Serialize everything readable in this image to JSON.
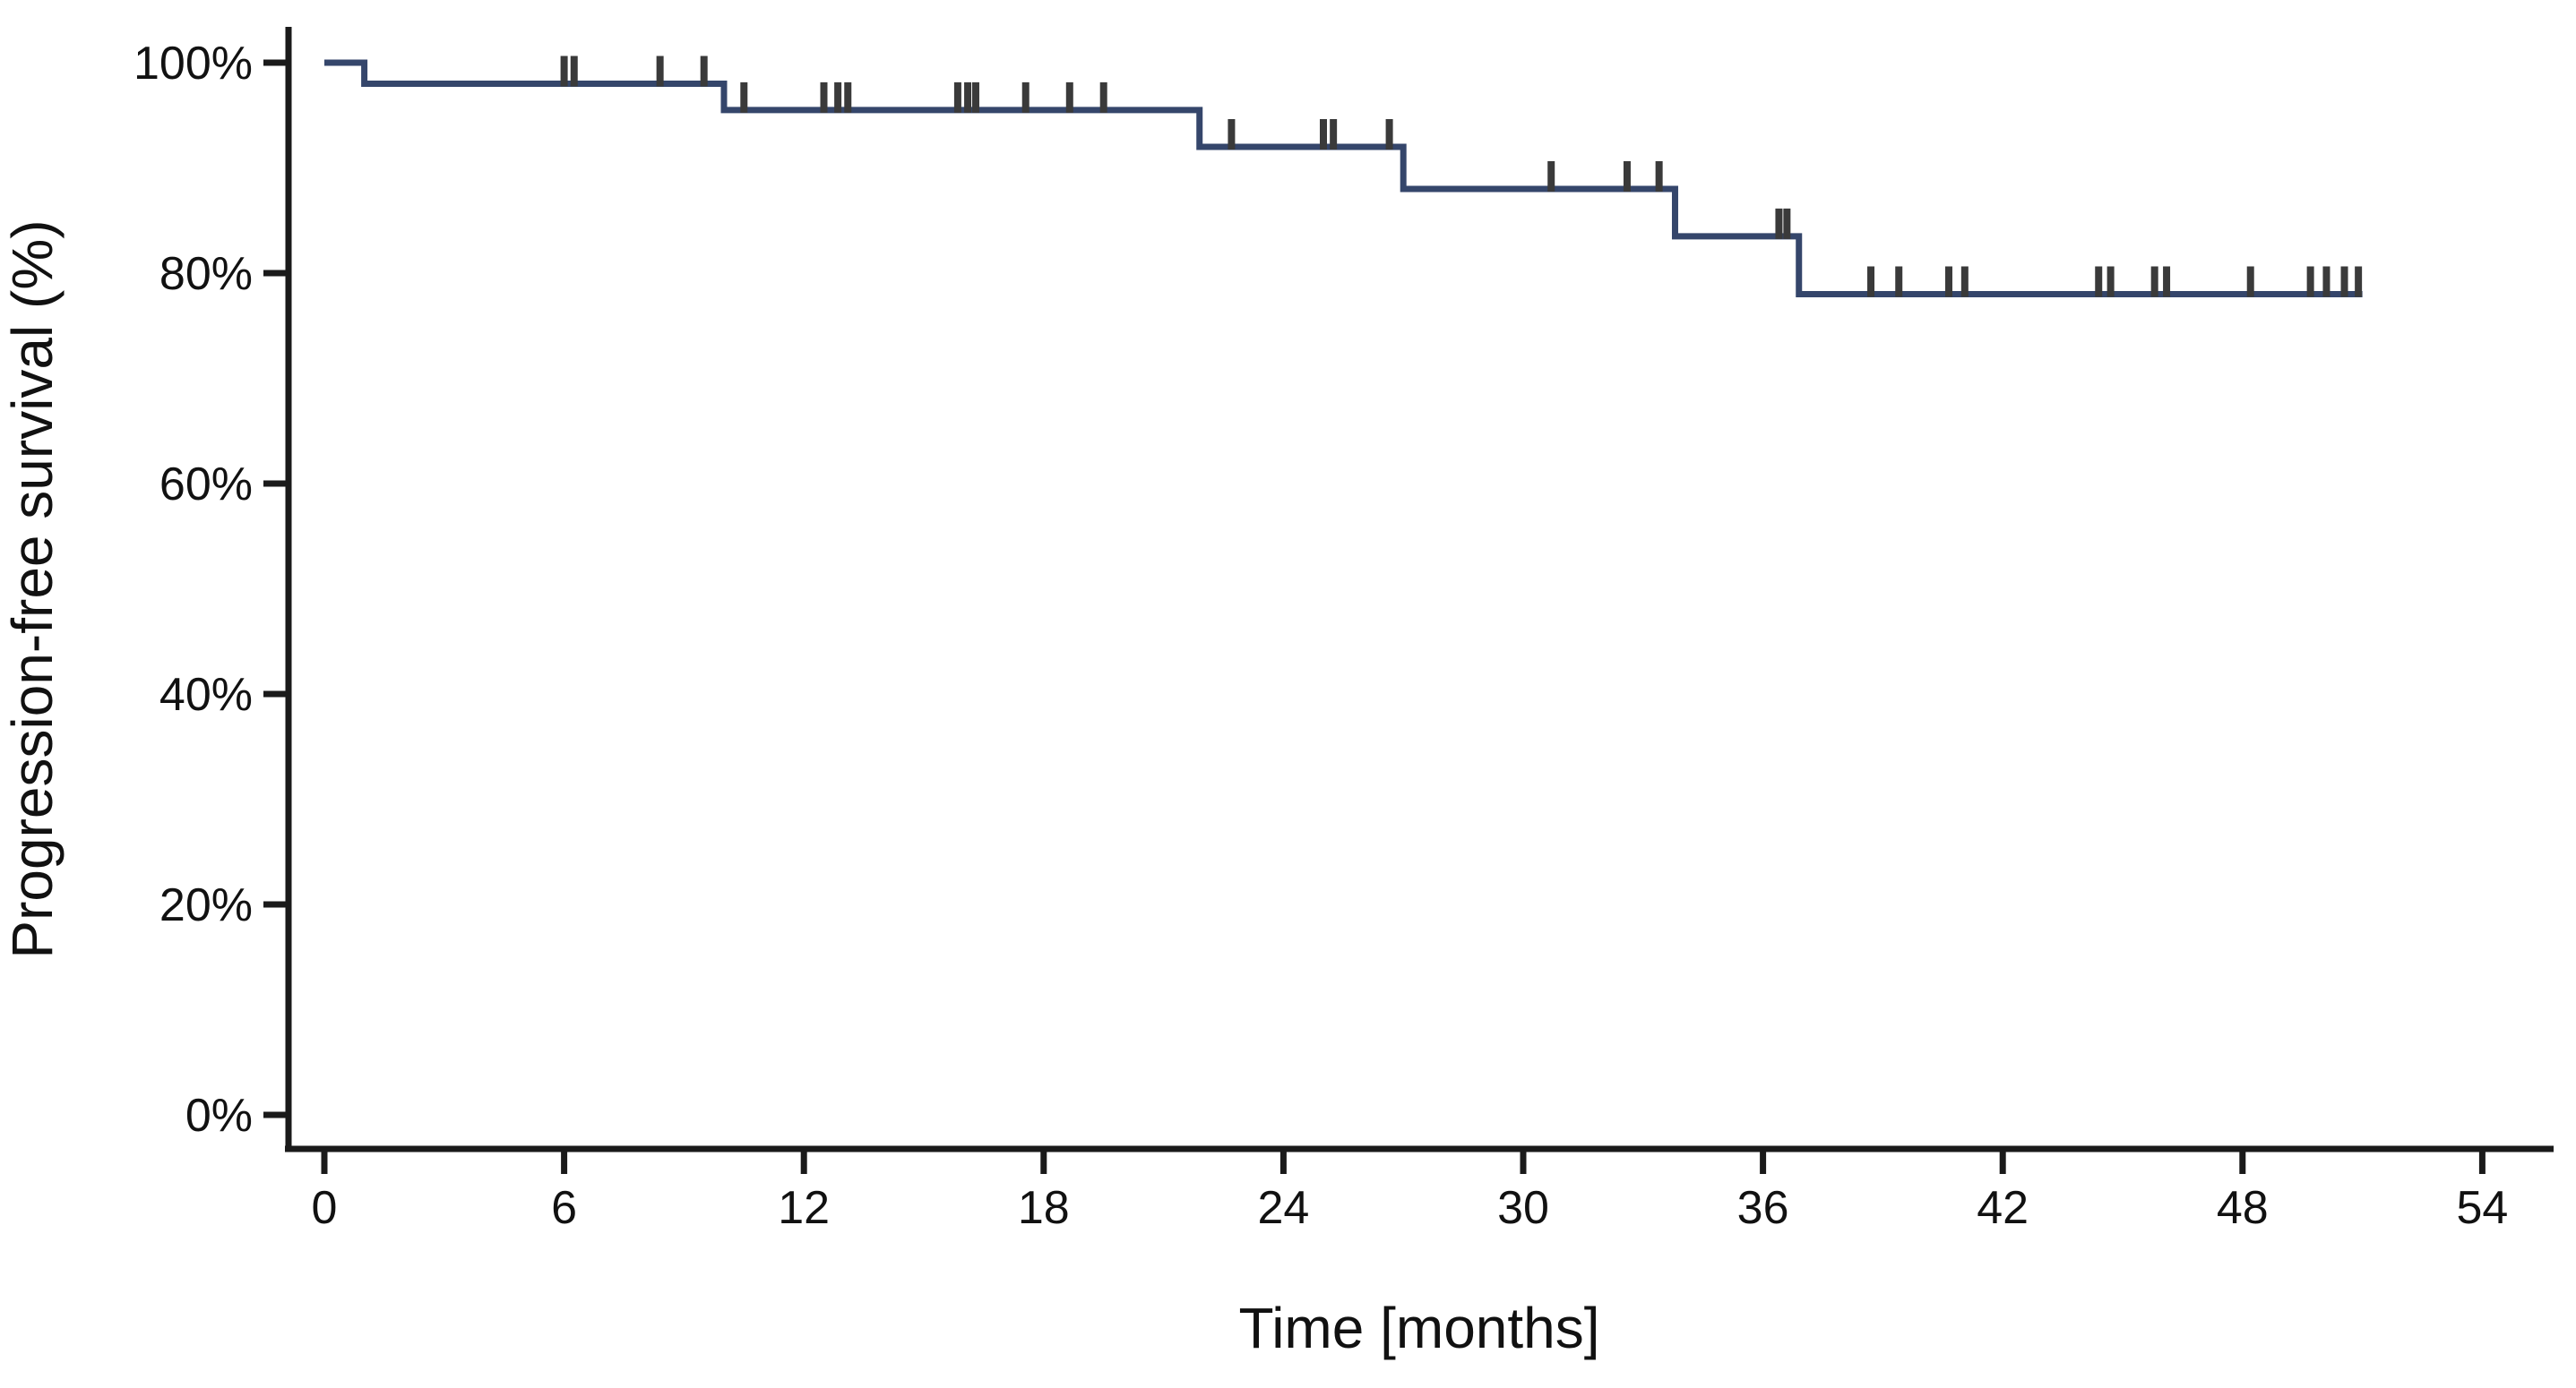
{
  "figure": {
    "kind": "kaplan-meier-step-plot",
    "background_color": "#ffffff"
  },
  "axes": {
    "x_title": "Time [months]",
    "y_title": "Progression-free survival (%)",
    "x_tick_labels": [
      "0",
      "6",
      "12",
      "18",
      "24",
      "30",
      "36",
      "42",
      "48",
      "54"
    ],
    "x_tick_values": [
      0,
      6,
      12,
      18,
      24,
      30,
      36,
      42,
      48,
      54
    ],
    "y_tick_labels": [
      "0%",
      "20%",
      "40%",
      "60%",
      "80%",
      "100%"
    ],
    "y_tick_values": [
      0,
      20,
      40,
      60,
      80,
      100
    ],
    "axis_color": "#1a1a1a"
  },
  "chart_data": {
    "type": "line",
    "subtype": "kaplan-meier-step",
    "title": "",
    "xlabel": "Time [months]",
    "ylabel": "Progression-free survival (%)",
    "xlim": [
      0,
      54
    ],
    "ylim_percent": [
      0,
      100
    ],
    "grid": false,
    "legend": "none",
    "line_color": "#35466b",
    "censor_color": "#3a3a3a",
    "series": [
      {
        "name": "Progression-free survival",
        "steps": [
          {
            "time": 0,
            "survival": 100
          },
          {
            "time": 1.0,
            "survival": 98
          },
          {
            "time": 10.0,
            "survival": 95.5
          },
          {
            "time": 21.9,
            "survival": 92
          },
          {
            "time": 27.0,
            "survival": 88
          },
          {
            "time": 33.8,
            "survival": 83.5
          },
          {
            "time": 36.9,
            "survival": 78
          }
        ],
        "end_time": 51.0,
        "censor_marks": [
          {
            "t": 6.0,
            "s": 98
          },
          {
            "t": 6.25,
            "s": 98
          },
          {
            "t": 8.4,
            "s": 98
          },
          {
            "t": 9.5,
            "s": 98
          },
          {
            "t": 10.5,
            "s": 95.5
          },
          {
            "t": 12.5,
            "s": 95.5
          },
          {
            "t": 12.85,
            "s": 95.5
          },
          {
            "t": 13.1,
            "s": 95.5
          },
          {
            "t": 15.85,
            "s": 95.5
          },
          {
            "t": 16.1,
            "s": 95.5
          },
          {
            "t": 16.3,
            "s": 95.5
          },
          {
            "t": 17.55,
            "s": 95.5
          },
          {
            "t": 18.65,
            "s": 95.5
          },
          {
            "t": 19.5,
            "s": 95.5
          },
          {
            "t": 22.7,
            "s": 92
          },
          {
            "t": 25.0,
            "s": 92
          },
          {
            "t": 25.25,
            "s": 92
          },
          {
            "t": 26.65,
            "s": 92
          },
          {
            "t": 30.7,
            "s": 88
          },
          {
            "t": 32.6,
            "s": 88
          },
          {
            "t": 33.4,
            "s": 88
          },
          {
            "t": 36.4,
            "s": 83.5
          },
          {
            "t": 36.6,
            "s": 83.5
          },
          {
            "t": 38.7,
            "s": 78
          },
          {
            "t": 39.4,
            "s": 78
          },
          {
            "t": 40.65,
            "s": 78
          },
          {
            "t": 41.05,
            "s": 78
          },
          {
            "t": 44.4,
            "s": 78
          },
          {
            "t": 44.7,
            "s": 78
          },
          {
            "t": 45.8,
            "s": 78
          },
          {
            "t": 46.1,
            "s": 78
          },
          {
            "t": 48.2,
            "s": 78
          },
          {
            "t": 49.7,
            "s": 78
          },
          {
            "t": 50.1,
            "s": 78
          },
          {
            "t": 50.55,
            "s": 78
          },
          {
            "t": 50.9,
            "s": 78
          }
        ]
      }
    ]
  }
}
